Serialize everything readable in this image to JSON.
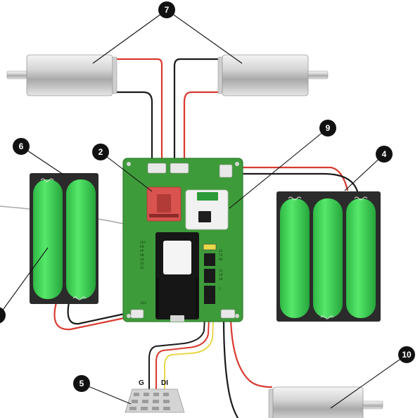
{
  "callouts": [
    {
      "id": "motor-pair",
      "label": "7"
    },
    {
      "id": "driver-board",
      "label": "2"
    },
    {
      "id": "receiver",
      "label": "9"
    },
    {
      "id": "battery-right",
      "label": "4"
    },
    {
      "id": "battery-left",
      "label": "6"
    },
    {
      "id": "led-module",
      "label": "5"
    },
    {
      "id": "motor-bottom",
      "label": "10"
    }
  ],
  "led_module": {
    "pin_g": "G",
    "pin_di": "DI"
  },
  "pcb": {
    "silk_left": [
      "3V3",
      "EN",
      "VP",
      "VN",
      "34",
      "35",
      "32"
    ],
    "silk_right": [
      "22",
      "TX",
      "RX",
      "21",
      "19",
      "18",
      "5"
    ],
    "silk_bottom": "D21"
  },
  "colors": {
    "pcb": "#3e9b3a",
    "pcb_edge": "#2f7d2c",
    "cell": "#39d84d",
    "driver": "#d9534f",
    "wire_red": "#d9392f",
    "wire_black": "#1a1a1a",
    "wire_yellow": "#e8d84a",
    "callout": "#111111"
  }
}
